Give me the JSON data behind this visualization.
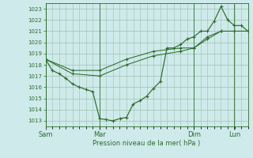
{
  "bg_color": "#ceeaea",
  "grid_color": "#9fbfaf",
  "line_color": "#2d6b2d",
  "xlabel": "Pression niveau de la mer( hPa )",
  "ylim": [
    1012.5,
    1023.5
  ],
  "yticks": [
    1013,
    1014,
    1015,
    1016,
    1017,
    1018,
    1019,
    1020,
    1021,
    1022,
    1023
  ],
  "xtick_labels": [
    "Sam",
    "Mar",
    "Dim",
    "Lun"
  ],
  "xtick_positions": [
    0.0,
    0.267,
    0.733,
    0.933
  ],
  "vline_positions": [
    0.0,
    0.267,
    0.733,
    0.933
  ],
  "series1_x": [
    0.0,
    0.033,
    0.067,
    0.1,
    0.133,
    0.167,
    0.2,
    0.233,
    0.267,
    0.3,
    0.333,
    0.367,
    0.4,
    0.433,
    0.467,
    0.5,
    0.533,
    0.567,
    0.6,
    0.633,
    0.667,
    0.7,
    0.733,
    0.767,
    0.8,
    0.833,
    0.867,
    0.9,
    0.933,
    0.967,
    1.0
  ],
  "series1_y": [
    1018.5,
    1017.5,
    1017.2,
    1016.8,
    1016.3,
    1016.0,
    1015.8,
    1015.6,
    1013.2,
    1013.1,
    1013.0,
    1013.2,
    1013.3,
    1014.5,
    1014.8,
    1015.2,
    1015.9,
    1016.5,
    1019.5,
    1019.5,
    1019.8,
    1020.3,
    1020.5,
    1021.0,
    1021.0,
    1021.9,
    1023.2,
    1022.0,
    1021.5,
    1021.5,
    1021.0
  ],
  "series2_x": [
    0.0,
    0.133,
    0.267,
    0.4,
    0.533,
    0.667,
    0.733,
    0.8,
    0.867,
    0.933,
    1.0
  ],
  "series2_y": [
    1018.5,
    1017.5,
    1017.5,
    1018.5,
    1019.2,
    1019.5,
    1019.5,
    1020.5,
    1021.0,
    1021.0,
    1021.0
  ],
  "series3_x": [
    0.0,
    0.133,
    0.267,
    0.4,
    0.533,
    0.667,
    0.733,
    0.8,
    0.867,
    0.933,
    1.0
  ],
  "series3_y": [
    1018.5,
    1017.2,
    1017.0,
    1018.0,
    1018.8,
    1019.2,
    1019.5,
    1020.3,
    1021.0,
    1021.0,
    1021.0
  ]
}
